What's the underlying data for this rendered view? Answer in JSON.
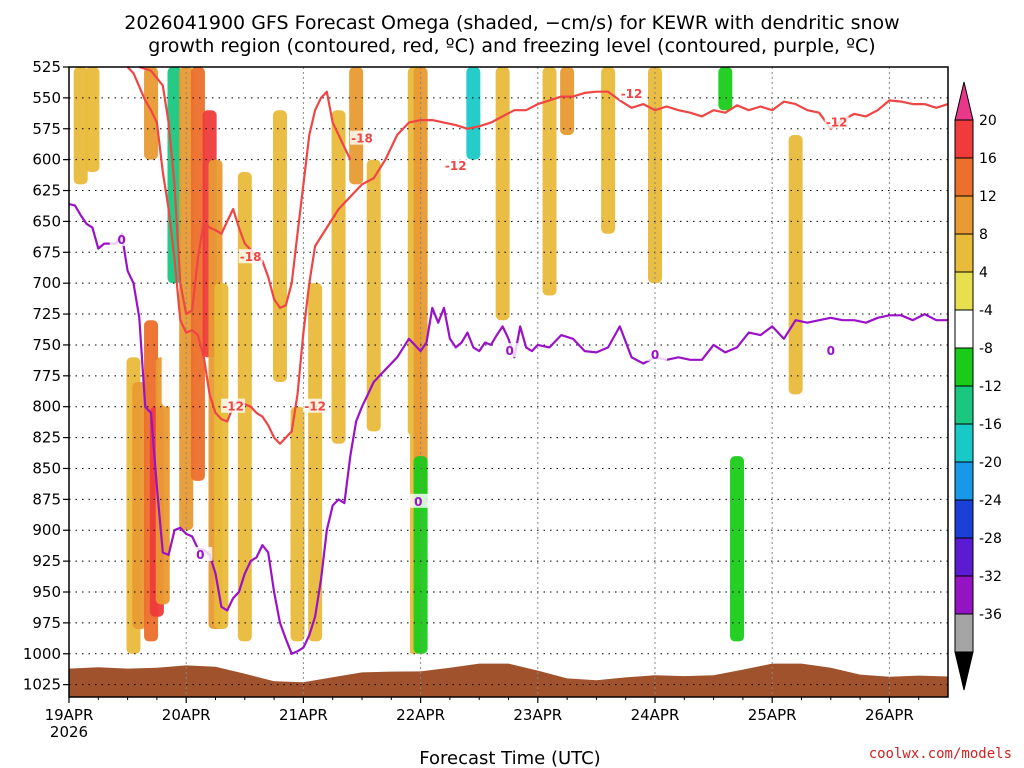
{
  "chart_data": {
    "type": "heatmap",
    "title_lines": [
      "2026041900 GFS Forecast Omega (shaded, −cm/s) for KEWR with dendritic snow",
      "growth region (contoured, red, ºC) and freezing level (contoured, purple, ºC)"
    ],
    "xlabel": "Forecast Time (UTC)",
    "credit": "coolwx.com/models",
    "x_ticks": [
      "19APR",
      "20APR",
      "21APR",
      "22APR",
      "23APR",
      "24APR",
      "25APR",
      "26APR"
    ],
    "x_year": "2026",
    "xlim_days": [
      0,
      7.5
    ],
    "y_ticks": [
      "525",
      "550",
      "575",
      "600",
      "625",
      "650",
      "675",
      "700",
      "725",
      "750",
      "775",
      "800",
      "825",
      "850",
      "875",
      "900",
      "925",
      "950",
      "975",
      "1000",
      "1025"
    ],
    "ylim_hpa": [
      1035,
      525
    ],
    "colorbar": {
      "labels": [
        "20",
        "16",
        "12",
        "8",
        "4",
        "-4",
        "-8",
        "-12",
        "-16",
        "-20",
        "-24",
        "-28",
        "-32",
        "-36"
      ],
      "colors": [
        "#e8388a",
        "#ef3b3b",
        "#ec6f2b",
        "#e99a33",
        "#e9bb3a",
        "#e6df4e",
        "#ffffff",
        "#19cc19",
        "#19c77f",
        "#19c9c7",
        "#1a98e8",
        "#1b40d8",
        "#5a1bd2",
        "#9414c4",
        "#a5a5a5",
        "#000000"
      ]
    },
    "series": [
      {
        "name": "-12",
        "color": "#f04545",
        "labels": [
          {
            "text": "-12",
            "day": 2.1,
            "hpa": 800
          },
          {
            "text": "-12",
            "day": 1.4,
            "hpa": 800
          },
          {
            "text": "-12",
            "day": 3.3,
            "hpa": 605
          },
          {
            "text": "-12",
            "day": 4.8,
            "hpa": 547
          },
          {
            "text": "-12",
            "day": 6.55,
            "hpa": 570
          }
        ],
        "x": [
          0.5,
          0.55,
          0.65,
          0.7,
          0.75,
          0.8,
          0.85,
          0.9,
          0.95,
          1.0,
          1.05,
          1.1,
          1.15,
          1.2,
          1.25,
          1.3,
          1.35,
          1.4,
          1.45,
          1.5,
          1.55,
          1.6,
          1.65,
          1.7,
          1.75,
          1.8,
          1.85,
          1.9,
          1.95,
          2.0,
          2.05,
          2.1,
          2.2,
          2.3,
          2.4,
          2.5,
          2.6,
          2.7,
          2.8,
          2.9,
          3.0,
          3.1,
          3.2,
          3.3,
          3.4,
          3.5,
          3.6,
          3.7,
          3.8,
          3.9,
          4.0,
          4.1,
          4.2,
          4.3,
          4.4,
          4.5,
          4.6,
          4.7,
          4.8,
          4.9,
          5.0,
          5.1,
          5.2,
          5.3,
          5.4,
          5.5,
          5.6,
          5.7,
          5.8,
          5.9,
          6.0,
          6.1,
          6.2,
          6.3,
          6.4,
          6.5,
          6.6,
          6.7,
          6.8,
          6.9,
          7.0,
          7.1,
          7.2,
          7.3,
          7.4,
          7.5
        ],
        "y": [
          525,
          530,
          552,
          560,
          570,
          610,
          640,
          680,
          730,
          740,
          738,
          742,
          760,
          790,
          805,
          810,
          812,
          800,
          795,
          798,
          800,
          805,
          808,
          815,
          825,
          830,
          825,
          820,
          790,
          740,
          700,
          670,
          655,
          640,
          630,
          620,
          615,
          600,
          580,
          570,
          568,
          568,
          570,
          572,
          575,
          573,
          570,
          565,
          560,
          560,
          555,
          552,
          549,
          549,
          546,
          545,
          545,
          552,
          558,
          555,
          560,
          557,
          560,
          562,
          565,
          560,
          562,
          556,
          560,
          557,
          560,
          553,
          555,
          560,
          562,
          575,
          568,
          563,
          565,
          560,
          552,
          553,
          555,
          555,
          558,
          555
        ]
      },
      {
        "name": "-18",
        "color": "#f04545",
        "labels": [
          {
            "text": "-18",
            "day": 1.55,
            "hpa": 679
          },
          {
            "text": "-18",
            "day": 2.5,
            "hpa": 583
          }
        ],
        "x": [
          0.6,
          0.7,
          0.8,
          0.85,
          0.9,
          0.95,
          1.0,
          1.05,
          1.1,
          1.15,
          1.2,
          1.25,
          1.3,
          1.35,
          1.4,
          1.45,
          1.5,
          1.55,
          1.6,
          1.65,
          1.7,
          1.75,
          1.8,
          1.85,
          1.9,
          1.95,
          2.0,
          2.05,
          2.1,
          2.15,
          2.2,
          2.25,
          2.3,
          2.35,
          2.4
        ],
        "y": [
          525,
          528,
          540,
          570,
          620,
          700,
          725,
          722,
          680,
          650,
          655,
          657,
          660,
          650,
          640,
          655,
          668,
          673,
          680,
          682,
          695,
          713,
          720,
          718,
          700,
          660,
          620,
          580,
          560,
          550,
          545,
          570,
          580,
          590,
          600
        ]
      },
      {
        "name": "0",
        "color": "#9a12c8",
        "labels": [
          {
            "text": "0",
            "day": 0.45,
            "hpa": 665
          },
          {
            "text": "0",
            "day": 1.12,
            "hpa": 920
          },
          {
            "text": "0",
            "day": 2.98,
            "hpa": 877
          },
          {
            "text": "0",
            "day": 3.76,
            "hpa": 755
          },
          {
            "text": "0",
            "day": 5.0,
            "hpa": 758
          },
          {
            "text": "0",
            "day": 6.5,
            "hpa": 755
          }
        ],
        "x": [
          0.0,
          0.05,
          0.1,
          0.15,
          0.2,
          0.25,
          0.3,
          0.35,
          0.4,
          0.45,
          0.5,
          0.55,
          0.6,
          0.65,
          0.7,
          0.75,
          0.8,
          0.85,
          0.9,
          0.95,
          1.0,
          1.05,
          1.1,
          1.15,
          1.2,
          1.25,
          1.3,
          1.35,
          1.4,
          1.45,
          1.5,
          1.55,
          1.6,
          1.65,
          1.7,
          1.75,
          1.8,
          1.85,
          1.9,
          1.95,
          2.0,
          2.05,
          2.1,
          2.15,
          2.2,
          2.25,
          2.3,
          2.35,
          2.4,
          2.45,
          2.5,
          2.55,
          2.6,
          2.7,
          2.8,
          2.9,
          3.0,
          3.05,
          3.1,
          3.15,
          3.2,
          3.25,
          3.3,
          3.35,
          3.4,
          3.45,
          3.5,
          3.55,
          3.6,
          3.65,
          3.7,
          3.75,
          3.8,
          3.85,
          3.9,
          3.95,
          4.0,
          4.1,
          4.2,
          4.3,
          4.4,
          4.5,
          4.6,
          4.7,
          4.8,
          4.9,
          5.0,
          5.1,
          5.2,
          5.3,
          5.4,
          5.5,
          5.6,
          5.7,
          5.8,
          5.9,
          6.0,
          6.1,
          6.2,
          6.3,
          6.4,
          6.5,
          6.6,
          6.7,
          6.8,
          6.9,
          7.0,
          7.1,
          7.2,
          7.3,
          7.4,
          7.5
        ],
        "y": [
          636,
          637,
          645,
          652,
          655,
          672,
          668,
          668,
          668,
          660,
          690,
          700,
          728,
          800,
          805,
          865,
          918,
          920,
          900,
          898,
          903,
          905,
          915,
          916,
          920,
          935,
          962,
          965,
          955,
          950,
          935,
          925,
          922,
          912,
          918,
          950,
          975,
          988,
          1000,
          998,
          995,
          985,
          970,
          940,
          900,
          880,
          875,
          878,
          840,
          812,
          800,
          790,
          780,
          770,
          760,
          745,
          755,
          748,
          720,
          732,
          720,
          745,
          752,
          748,
          740,
          752,
          755,
          748,
          750,
          742,
          735,
          745,
          760,
          735,
          752,
          755,
          750,
          752,
          742,
          745,
          755,
          756,
          752,
          735,
          760,
          765,
          760,
          762,
          760,
          762,
          762,
          750,
          756,
          752,
          740,
          742,
          735,
          745,
          730,
          732,
          730,
          728,
          730,
          730,
          732,
          728,
          726,
          726,
          730,
          725,
          730,
          730
        ]
      },
      {
        "name": "omega_shaded_cells",
        "shade": [
          {
            "day": 0.1,
            "hpa": [
              525,
              620
            ],
            "v": 6
          },
          {
            "day": 0.2,
            "hpa": [
              525,
              610
            ],
            "v": 6
          },
          {
            "day": 0.22,
            "hpa": [
              770,
              985
            ],
            "v": -6
          },
          {
            "day": 0.55,
            "hpa": [
              760,
              1000
            ],
            "v": 6
          },
          {
            "day": 0.6,
            "hpa": [
              780,
              980
            ],
            "v": 10
          },
          {
            "day": 0.7,
            "hpa": [
              730,
              990
            ],
            "v": 14
          },
          {
            "day": 0.75,
            "hpa": [
              800,
              970
            ],
            "v": 18
          },
          {
            "day": 0.8,
            "hpa": [
              760,
              960
            ],
            "v": 10
          },
          {
            "day": 0.7,
            "hpa": [
              525,
              600
            ],
            "v": 8
          },
          {
            "day": 0.85,
            "hpa": [
              525,
              800
            ],
            "v": -6
          },
          {
            "day": 0.9,
            "hpa": [
              525,
              700
            ],
            "v": -14
          },
          {
            "day": 1.0,
            "hpa": [
              525,
              900
            ],
            "v": 10
          },
          {
            "day": 1.1,
            "hpa": [
              525,
              860
            ],
            "v": 14
          },
          {
            "day": 1.2,
            "hpa": [
              560,
              760
            ],
            "v": 18
          },
          {
            "day": 1.25,
            "hpa": [
              600,
              980
            ],
            "v": 10
          },
          {
            "day": 1.3,
            "hpa": [
              700,
              980
            ],
            "v": 6
          },
          {
            "day": 1.5,
            "hpa": [
              610,
              990
            ],
            "v": 6
          },
          {
            "day": 1.8,
            "hpa": [
              560,
              780
            ],
            "v": 6
          },
          {
            "day": 1.95,
            "hpa": [
              800,
              990
            ],
            "v": 6
          },
          {
            "day": 2.1,
            "hpa": [
              700,
              990
            ],
            "v": 6
          },
          {
            "day": 2.3,
            "hpa": [
              560,
              830
            ],
            "v": 6
          },
          {
            "day": 2.45,
            "hpa": [
              525,
              620
            ],
            "v": 8
          },
          {
            "day": 2.6,
            "hpa": [
              600,
              820
            ],
            "v": 6
          },
          {
            "day": 2.95,
            "hpa": [
              525,
              1000
            ],
            "v": 6
          },
          {
            "day": 3.0,
            "hpa": [
              525,
              880
            ],
            "v": 10
          },
          {
            "day": 3.0,
            "hpa": [
              840,
              1000
            ],
            "v": -10
          },
          {
            "day": 2.85,
            "hpa": [
              820,
              1010
            ],
            "v": -8
          },
          {
            "day": 3.3,
            "hpa": [
              680,
              780
            ],
            "v": -6
          },
          {
            "day": 3.35,
            "hpa": [
              525,
              570
            ],
            "v": -8
          },
          {
            "day": 3.45,
            "hpa": [
              525,
              600
            ],
            "v": -20
          },
          {
            "day": 3.5,
            "hpa": [
              730,
              940
            ],
            "v": -6
          },
          {
            "day": 3.7,
            "hpa": [
              525,
              730
            ],
            "v": 6
          },
          {
            "day": 4.1,
            "hpa": [
              525,
              710
            ],
            "v": 6
          },
          {
            "day": 4.3,
            "hpa": [
              780,
              900
            ],
            "v": -6
          },
          {
            "day": 4.25,
            "hpa": [
              525,
              580
            ],
            "v": 8
          },
          {
            "day": 4.6,
            "hpa": [
              525,
              660
            ],
            "v": 6
          },
          {
            "day": 4.8,
            "hpa": [
              640,
              760
            ],
            "v": -6
          },
          {
            "day": 5.0,
            "hpa": [
              525,
              700
            ],
            "v": 6
          },
          {
            "day": 5.3,
            "hpa": [
              760,
              940
            ],
            "v": -6
          },
          {
            "day": 5.6,
            "hpa": [
              525,
              560
            ],
            "v": -10
          },
          {
            "day": 5.6,
            "hpa": [
              600,
              650
            ],
            "v": -6
          },
          {
            "day": 5.7,
            "hpa": [
              840,
              990
            ],
            "v": -12
          },
          {
            "day": 6.2,
            "hpa": [
              580,
              790
            ],
            "v": 6
          },
          {
            "day": 6.1,
            "hpa": [
              930,
              970
            ],
            "v": -6
          },
          {
            "day": 7.45,
            "hpa": [
              580,
              700
            ],
            "v": -6
          }
        ]
      }
    ]
  }
}
